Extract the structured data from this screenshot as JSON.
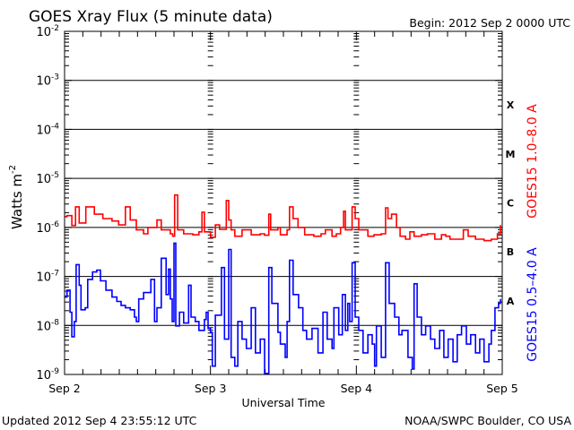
{
  "chart_data": {
    "type": "line",
    "title": "GOES Xray Flux (5 minute data)",
    "begin_label": "Begin:  2012 Sep 2 0000 UTC",
    "ylabel": "Watts m",
    "ylabel_exp": "-2",
    "xlabel": "Universal Time",
    "y_scale": "log",
    "ylim_log10": [
      -9,
      -2
    ],
    "y_ticks": [
      {
        "base": "10",
        "exp": "-2",
        "log": -2
      },
      {
        "base": "10",
        "exp": "-3",
        "log": -3
      },
      {
        "base": "10",
        "exp": "-4",
        "log": -4
      },
      {
        "base": "10",
        "exp": "-5",
        "log": -5
      },
      {
        "base": "10",
        "exp": "-6",
        "log": -6
      },
      {
        "base": "10",
        "exp": "-7",
        "log": -7
      },
      {
        "base": "10",
        "exp": "-8",
        "log": -8
      },
      {
        "base": "10",
        "exp": "-9",
        "log": -9
      }
    ],
    "xlim_hours": [
      0,
      72
    ],
    "x_ticks": [
      {
        "label": "Sep 2",
        "hour": 0
      },
      {
        "label": "Sep 3",
        "hour": 24
      },
      {
        "label": "Sep 4",
        "hour": 48
      },
      {
        "label": "Sep 5",
        "hour": 72
      }
    ],
    "flare_classes": [
      {
        "label": "X",
        "log": -3.5
      },
      {
        "label": "M",
        "log": -4.5
      },
      {
        "label": "C",
        "log": -5.5
      },
      {
        "label": "B",
        "log": -6.5
      },
      {
        "label": "A",
        "log": -7.5
      }
    ],
    "grid": "horizontal decades",
    "series": [
      {
        "name": "GOES15 1.0–8.0 A",
        "color": "#ff0000",
        "x_hours": [
          0,
          0.4,
          1.2,
          1.8,
          2.4,
          3.5,
          4.9,
          6.3,
          7.8,
          8.9,
          10.0,
          10.8,
          11.8,
          13.0,
          13.7,
          15.2,
          15.9,
          17.4,
          17.8,
          18.1,
          18.6,
          19.6,
          21.1,
          22.1,
          22.6,
          23.0,
          24.0,
          24.8,
          25.5,
          26.6,
          27.0,
          27.4,
          28.0,
          29.2,
          30.7,
          32.2,
          32.9,
          33.6,
          33.9,
          35.1,
          35.5,
          36.6,
          37.0,
          37.6,
          38.4,
          39.5,
          41.0,
          42.2,
          42.9,
          44.0,
          44.7,
          45.4,
          45.9,
          46.2,
          46.9,
          47.3,
          47.8,
          48.4,
          49.9,
          50.9,
          52.1,
          52.8,
          53.2,
          53.8,
          54.6,
          55.2,
          56.1,
          56.8,
          57.5,
          58.7,
          59.7,
          60.9,
          62.0,
          62.7,
          63.4,
          64.6,
          65.6,
          66.4,
          67.6,
          69.0,
          70.2,
          71.2,
          71.7
        ],
        "log10_flux": [
          -5.78,
          -5.76,
          -5.96,
          -5.58,
          -5.91,
          -5.58,
          -5.73,
          -5.82,
          -5.87,
          -5.95,
          -5.58,
          -5.85,
          -6.05,
          -6.13,
          -6.0,
          -5.85,
          -6.05,
          -6.13,
          -6.18,
          -5.34,
          -6.05,
          -6.13,
          -6.15,
          -6.09,
          -5.69,
          -6.09,
          -6.2,
          -5.95,
          -6.04,
          -5.45,
          -5.85,
          -6.05,
          -6.18,
          -6.05,
          -6.15,
          -6.13,
          -6.16,
          -5.73,
          -6.05,
          -6.0,
          -6.15,
          -6.05,
          -5.58,
          -5.82,
          -6.0,
          -6.15,
          -6.18,
          -6.13,
          -6.05,
          -6.18,
          -6.13,
          -6.0,
          -5.67,
          -6.05,
          -6.05,
          -5.58,
          -5.82,
          -6.05,
          -6.18,
          -6.15,
          -6.13,
          -5.6,
          -5.82,
          -5.73,
          -6.0,
          -6.18,
          -6.24,
          -6.09,
          -6.18,
          -6.15,
          -6.13,
          -6.24,
          -6.15,
          -6.18,
          -6.24,
          -6.24,
          -6.05,
          -6.18,
          -6.24,
          -6.27,
          -6.24,
          -6.13,
          -5.95
        ]
      },
      {
        "name": "GOES15 0.5–4.0 A",
        "color": "#0000ff",
        "x_hours": [
          0,
          0.4,
          0.9,
          1.2,
          1.6,
          1.9,
          2.4,
          2.7,
          3.4,
          3.8,
          4.6,
          5.3,
          5.9,
          6.8,
          7.8,
          8.6,
          9.3,
          10.0,
          10.8,
          11.5,
          11.8,
          12.2,
          13.0,
          14.2,
          14.8,
          15.2,
          15.9,
          16.7,
          17.1,
          17.4,
          17.7,
          18.0,
          18.3,
          18.9,
          19.6,
          20.4,
          20.8,
          21.5,
          22.1,
          22.6,
          23.0,
          23.3,
          23.6,
          24.0,
          24.3,
          24.8,
          25.8,
          26.3,
          27.0,
          27.4,
          28.0,
          28.5,
          29.2,
          29.9,
          30.7,
          31.4,
          32.2,
          32.9,
          33.6,
          34.1,
          35.1,
          35.5,
          36.3,
          36.6,
          37.0,
          37.6,
          38.5,
          39.2,
          39.8,
          40.7,
          41.7,
          42.5,
          43.2,
          44.0,
          44.3,
          45.1,
          45.7,
          46.2,
          46.6,
          46.9,
          47.3,
          47.8,
          48.4,
          49.1,
          49.9,
          50.6,
          51.0,
          51.3,
          52.1,
          52.8,
          53.4,
          54.3,
          55.0,
          55.5,
          56.5,
          57.2,
          57.5,
          58.0,
          58.7,
          59.4,
          60.2,
          60.9,
          61.7,
          62.4,
          63.1,
          63.9,
          64.6,
          65.3,
          66.1,
          66.8,
          67.6,
          68.3,
          69.0,
          69.8,
          70.2,
          70.8,
          71.4,
          71.7
        ],
        "log10_flux": [
          -7.42,
          -7.28,
          -7.73,
          -8.23,
          -7.92,
          -6.76,
          -7.18,
          -7.68,
          -7.64,
          -7.06,
          -6.91,
          -6.87,
          -7.09,
          -7.28,
          -7.42,
          -7.51,
          -7.59,
          -7.64,
          -7.68,
          -7.83,
          -7.92,
          -7.46,
          -7.33,
          -7.06,
          -7.92,
          -7.64,
          -6.63,
          -7.37,
          -6.85,
          -7.46,
          -7.92,
          -6.32,
          -8.01,
          -7.73,
          -7.95,
          -7.18,
          -7.83,
          -7.92,
          -8.1,
          -8.1,
          -7.88,
          -7.73,
          -8.06,
          -8.14,
          -8.83,
          -7.79,
          -6.82,
          -8.28,
          -6.45,
          -8.65,
          -8.83,
          -7.92,
          -8.28,
          -8.47,
          -7.64,
          -8.56,
          -8.28,
          -8.98,
          -6.82,
          -7.55,
          -8.14,
          -8.38,
          -8.65,
          -7.92,
          -6.67,
          -7.37,
          -7.64,
          -8.1,
          -8.28,
          -8.06,
          -8.56,
          -7.73,
          -8.28,
          -8.47,
          -7.64,
          -8.19,
          -7.37,
          -8.1,
          -7.55,
          -7.92,
          -6.72,
          -7.83,
          -8.1,
          -8.56,
          -8.19,
          -8.38,
          -8.83,
          -8.01,
          -8.65,
          -6.72,
          -7.55,
          -7.83,
          -8.19,
          -8.1,
          -8.65,
          -8.89,
          -7.15,
          -7.83,
          -8.19,
          -8.01,
          -8.28,
          -8.47,
          -8.1,
          -8.65,
          -8.28,
          -8.74,
          -8.19,
          -8.01,
          -8.38,
          -8.19,
          -8.56,
          -8.28,
          -8.74,
          -8.38,
          -8.1,
          -7.64,
          -7.55,
          -7.46
        ]
      }
    ]
  },
  "footer": {
    "updated": "Updated 2012 Sep  4 23:55:12 UTC",
    "credit": "NOAA/SWPC Boulder, CO USA"
  }
}
